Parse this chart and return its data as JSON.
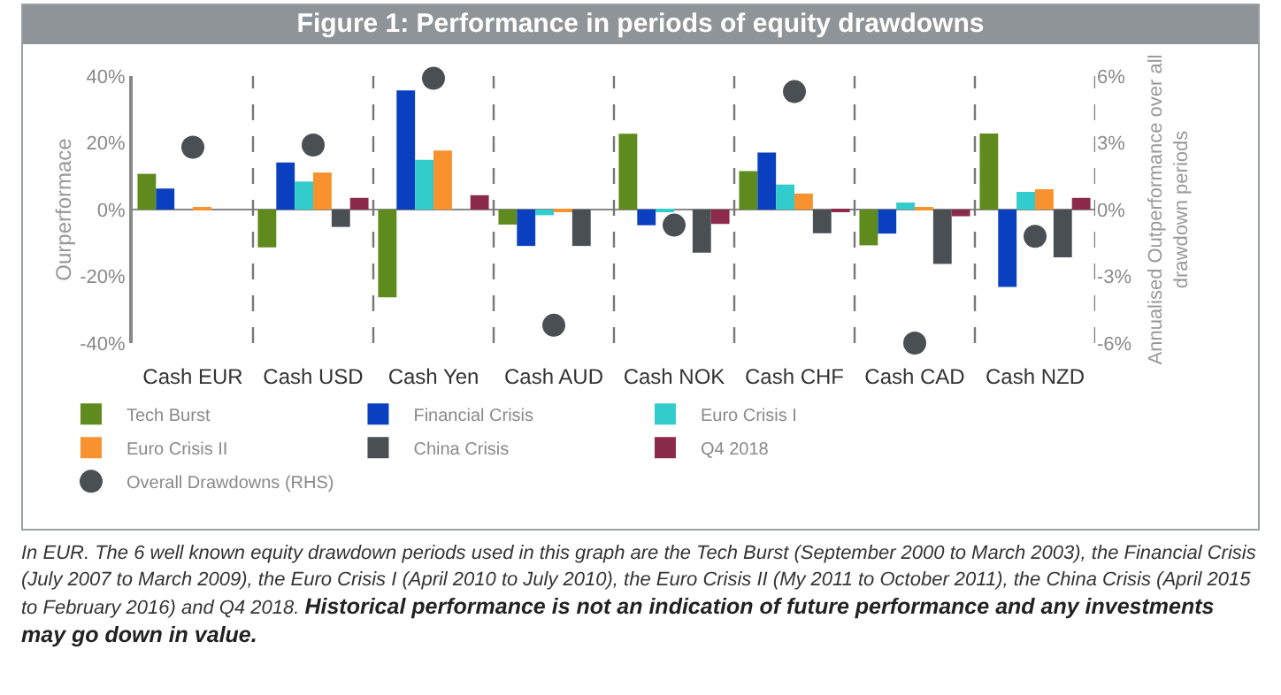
{
  "chart_data": {
    "type": "bar",
    "title": "Figure 1: Performance in periods of equity drawdowns",
    "ylabel": "Ourperformace",
    "y2label": "Annualised Outperformance over all drawdown periods",
    "categories": [
      "Cash EUR",
      "Cash USD",
      "Cash Yen",
      "Cash AUD",
      "Cash NOK",
      "Cash CHF",
      "Cash CAD",
      "Cash NZD"
    ],
    "series": [
      {
        "name": "Tech Burst",
        "color": "#5f8a1e",
        "values": [
          10.7,
          -11.3,
          -26.3,
          -4.5,
          22.7,
          11.5,
          -10.7,
          22.8
        ]
      },
      {
        "name": "Financial Crisis",
        "color": "#0a3fbf",
        "values": [
          6.3,
          14.1,
          35.7,
          -10.9,
          -4.7,
          17.1,
          -7.2,
          -23.2
        ]
      },
      {
        "name": "Euro Crisis I",
        "color": "#33cccc",
        "values": [
          0,
          8.4,
          14.9,
          -1.7,
          -0.8,
          7.5,
          2.1,
          5.3
        ]
      },
      {
        "name": "Euro Crisis II",
        "color": "#f7922e",
        "values": [
          0.5,
          11.1,
          17.7,
          -0.7,
          0,
          4.8,
          0.8,
          6.1
        ]
      },
      {
        "name": "China Crisis",
        "color": "#4a4f54",
        "values": [
          0,
          -5.2,
          0,
          -10.9,
          -12.9,
          -7.1,
          -16.3,
          -14.3
        ]
      },
      {
        "name": "Q4 2018",
        "color": "#8b2a4a",
        "values": [
          0,
          3.5,
          4.3,
          0,
          -4.3,
          -0.4,
          -2,
          3.5
        ]
      },
      {
        "name": "Overall Drawdowns (RHS)",
        "type": "scatter",
        "axis": "y2",
        "color": "#4a4f54",
        "values": [
          2.8,
          2.9,
          5.9,
          -5.2,
          -0.7,
          5.3,
          -6.0,
          -1.2
        ]
      }
    ],
    "ylim": [
      -40,
      40
    ],
    "yticks": [
      {
        "value": -40,
        "label": "-40%"
      },
      {
        "value": -20,
        "label": "-20%"
      },
      {
        "value": 0,
        "label": "0%"
      },
      {
        "value": 20,
        "label": "20%"
      },
      {
        "value": 40,
        "label": "40%"
      }
    ],
    "y2lim": [
      -6,
      6
    ],
    "y2ticks": [
      {
        "value": -6,
        "label": "-6%"
      },
      {
        "value": -3,
        "label": "-3%"
      },
      {
        "value": 0,
        "label": "0%"
      },
      {
        "value": 3,
        "label": "3%"
      },
      {
        "value": 6,
        "label": "6%"
      }
    ],
    "grid": "x",
    "legend": "bottom",
    "marker": "circle",
    "annotations": [
      "In EUR. The 6 well known equity drawdown periods used in this graph are the Tech Burst (September 2000 to March 2003), the Financial Crisis (July  2007 to March 2009), the Euro Crisis I (April 2010 to July 2010), the Euro Crisis II (My 2011 to October 2011), the China Crisis (April 2015 to February 2016) and Q4 2018.",
      "Historical performance is not an indication of future performance and any investments may go down in value."
    ]
  }
}
